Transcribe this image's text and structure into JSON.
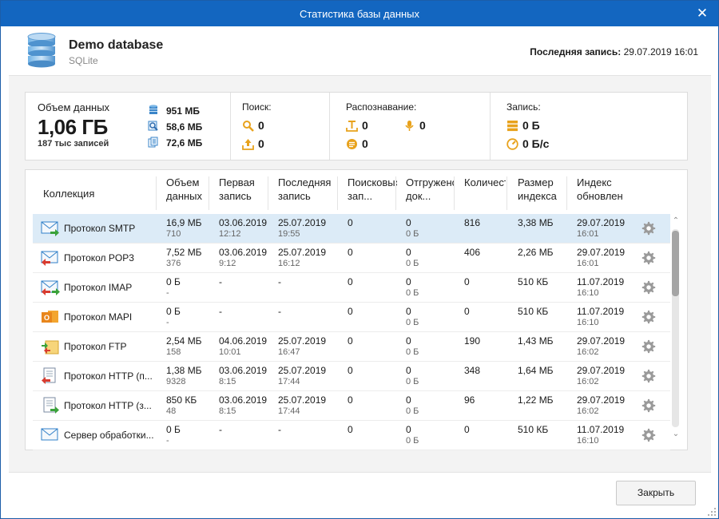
{
  "window": {
    "title": "Статистика базы данных",
    "close_glyph": "✕"
  },
  "header": {
    "db_name": "Demo database",
    "db_type": "SQLite",
    "last_record_label": "Последняя запись:",
    "last_record_value": "29.07.2019 16:01"
  },
  "stats": {
    "volume": {
      "label": "Объем данных",
      "value": "1,06 ГБ",
      "records": "187 тыс записей",
      "details": [
        {
          "icon": "database-icon",
          "value": "951 МБ"
        },
        {
          "icon": "index-search-icon",
          "value": "58,6 МБ"
        },
        {
          "icon": "documents-icon",
          "value": "72,6 МБ"
        }
      ]
    },
    "search": {
      "label": "Поиск:",
      "items": [
        {
          "icon": "search-key-icon",
          "value": "0"
        },
        {
          "icon": "upload-icon",
          "value": "0"
        }
      ]
    },
    "recognition": {
      "label": "Распознавание:",
      "items": [
        {
          "icon": "text-recognition-icon",
          "value": "0"
        },
        {
          "icon": "microphone-icon",
          "value": "0"
        },
        {
          "icon": "ocr-icon",
          "value": "0"
        }
      ]
    },
    "write": {
      "label": "Запись:",
      "items": [
        {
          "icon": "storage-icon",
          "value": "0 Б"
        },
        {
          "icon": "speed-icon",
          "value": "0 Б/с"
        }
      ]
    }
  },
  "table": {
    "headers": [
      "Коллекция",
      "Объем данных",
      "Первая запись",
      "Последняя запись",
      "Поисковых зап...",
      "Отгружено док...",
      "Количество...",
      "Размер индекса",
      "Индекс обновлен"
    ],
    "rows": [
      {
        "icon": "mail-in-icon",
        "name": "Протокол SMTP",
        "volume": "16,9 МБ",
        "volume_sub": "710",
        "first": "03.06.2019",
        "first_sub": "12:12",
        "last": "25.07.2019",
        "last_sub": "19:55",
        "search": "0",
        "exported": "0",
        "exported_sub": "0 Б",
        "count": "816",
        "index_size": "3,38 МБ",
        "index_date": "29.07.2019",
        "index_time": "16:01",
        "selected": true
      },
      {
        "icon": "mail-out-icon",
        "name": "Протокол POP3",
        "volume": "7,52 МБ",
        "volume_sub": "376",
        "first": "03.06.2019",
        "first_sub": "9:12",
        "last": "25.07.2019",
        "last_sub": "16:12",
        "search": "0",
        "exported": "0",
        "exported_sub": "0 Б",
        "count": "406",
        "index_size": "2,26 МБ",
        "index_date": "29.07.2019",
        "index_time": "16:01",
        "selected": false
      },
      {
        "icon": "mail-both-icon",
        "name": "Протокол IMAP",
        "volume": "0 Б",
        "volume_sub": "-",
        "first": "-",
        "first_sub": "",
        "last": "-",
        "last_sub": "",
        "search": "0",
        "exported": "0",
        "exported_sub": "0 Б",
        "count": "0",
        "index_size": "510 КБ",
        "index_date": "11.07.2019",
        "index_time": "16:10",
        "selected": false
      },
      {
        "icon": "outlook-icon",
        "name": "Протокол MAPI",
        "volume": "0 Б",
        "volume_sub": "-",
        "first": "-",
        "first_sub": "",
        "last": "-",
        "last_sub": "",
        "search": "0",
        "exported": "0",
        "exported_sub": "0 Б",
        "count": "0",
        "index_size": "510 КБ",
        "index_date": "11.07.2019",
        "index_time": "16:10",
        "selected": false
      },
      {
        "icon": "folder-transfer-icon",
        "name": "Протокол FTP",
        "volume": "2,54 МБ",
        "volume_sub": "158",
        "first": "04.06.2019",
        "first_sub": "10:01",
        "last": "25.07.2019",
        "last_sub": "16:47",
        "search": "0",
        "exported": "0",
        "exported_sub": "0 Б",
        "count": "190",
        "index_size": "1,43 МБ",
        "index_date": "29.07.2019",
        "index_time": "16:02",
        "selected": false
      },
      {
        "icon": "page-out-icon",
        "name": "Протокол HTTP (п...",
        "volume": "1,38 МБ",
        "volume_sub": "9328",
        "first": "03.06.2019",
        "first_sub": "8:15",
        "last": "25.07.2019",
        "last_sub": "17:44",
        "search": "0",
        "exported": "0",
        "exported_sub": "0 Б",
        "count": "348",
        "index_size": "1,64 МБ",
        "index_date": "29.07.2019",
        "index_time": "16:02",
        "selected": false
      },
      {
        "icon": "page-in-icon",
        "name": "Протокол HTTP (з...",
        "volume": "850 КБ",
        "volume_sub": "48",
        "first": "03.06.2019",
        "first_sub": "8:15",
        "last": "25.07.2019",
        "last_sub": "17:44",
        "search": "0",
        "exported": "0",
        "exported_sub": "0 Б",
        "count": "96",
        "index_size": "1,22 МБ",
        "index_date": "29.07.2019",
        "index_time": "16:02",
        "selected": false
      },
      {
        "icon": "mail-server-icon",
        "name": "Сервер обработки...",
        "volume": "0 Б",
        "volume_sub": "-",
        "first": "-",
        "first_sub": "",
        "last": "-",
        "last_sub": "",
        "search": "0",
        "exported": "0",
        "exported_sub": "0 Б",
        "count": "0",
        "index_size": "510 КБ",
        "index_date": "11.07.2019",
        "index_time": "16:10",
        "selected": false
      }
    ]
  },
  "footer": {
    "close_label": "Закрыть"
  },
  "colors": {
    "titlebar": "#1366c0",
    "selected_row": "#dcebf7",
    "accent_orange": "#e8a21c",
    "mail_blue": "#2f7fc8",
    "arrow_green": "#3aa23a",
    "arrow_red": "#d83b2f"
  }
}
